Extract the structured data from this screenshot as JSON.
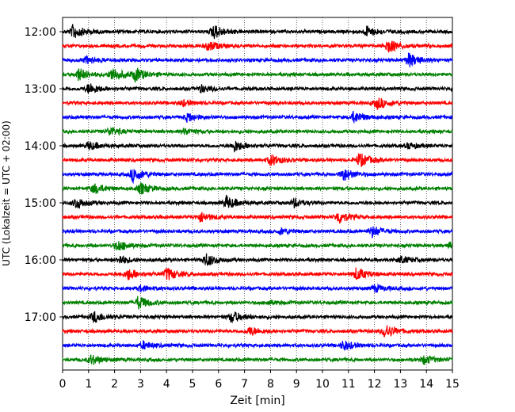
{
  "chart_data": {
    "type": "line",
    "title": "",
    "xlabel": "Zeit  [min]",
    "ylabel": "UTC (Lokalzeit = UTC + 02:00)",
    "xlim": [
      0,
      15
    ],
    "x_ticks": [
      "0",
      "1",
      "2",
      "3",
      "4",
      "5",
      "6",
      "7",
      "8",
      "9",
      "10",
      "11",
      "12",
      "13",
      "14",
      "15"
    ],
    "y_ticks": [
      "12:00",
      "13:00",
      "14:00",
      "15:00",
      "16:00",
      "17:00"
    ],
    "grid": "vertical dotted",
    "trace_start_time": "12:00",
    "trace_interval_min": 15,
    "trace_colors": [
      "#000000",
      "#ff0000",
      "#0000ff",
      "#008000"
    ],
    "traces": [
      {
        "start": "12:00",
        "events": [
          [
            0.4,
            1.0
          ],
          [
            5.8,
            1.0
          ],
          [
            11.7,
            0.7
          ]
        ]
      },
      {
        "start": "12:15",
        "events": [
          [
            5.6,
            0.7
          ],
          [
            12.5,
            1.0
          ]
        ]
      },
      {
        "start": "12:30",
        "events": [
          [
            0.9,
            0.5
          ],
          [
            13.3,
            1.0
          ]
        ]
      },
      {
        "start": "12:45",
        "events": [
          [
            0.6,
            0.9
          ],
          [
            1.9,
            1.0
          ],
          [
            2.8,
            0.9
          ]
        ]
      },
      {
        "start": "13:00",
        "events": [
          [
            1.0,
            0.8
          ],
          [
            5.3,
            0.5
          ]
        ]
      },
      {
        "start": "13:15",
        "events": [
          [
            4.6,
            0.4
          ],
          [
            12.1,
            0.8
          ]
        ]
      },
      {
        "start": "13:30",
        "events": [
          [
            4.8,
            0.6
          ],
          [
            11.2,
            0.8
          ]
        ]
      },
      {
        "start": "13:45",
        "events": [
          [
            1.8,
            0.6
          ],
          [
            4.7,
            0.4
          ]
        ]
      },
      {
        "start": "14:00",
        "events": [
          [
            1.0,
            0.6
          ],
          [
            6.6,
            0.8
          ],
          [
            13.3,
            0.4
          ]
        ]
      },
      {
        "start": "14:15",
        "events": [
          [
            8.0,
            0.8
          ],
          [
            11.4,
            1.0
          ]
        ]
      },
      {
        "start": "14:30",
        "events": [
          [
            2.7,
            1.0
          ],
          [
            10.8,
            0.9
          ]
        ]
      },
      {
        "start": "14:45",
        "events": [
          [
            1.2,
            0.7
          ],
          [
            3.0,
            0.8
          ]
        ]
      },
      {
        "start": "15:00",
        "events": [
          [
            0.5,
            0.8
          ],
          [
            6.3,
            0.9
          ],
          [
            8.9,
            0.6
          ]
        ]
      },
      {
        "start": "15:15",
        "events": [
          [
            5.3,
            0.7
          ],
          [
            10.6,
            0.9
          ]
        ]
      },
      {
        "start": "15:30",
        "events": [
          [
            8.4,
            0.4
          ],
          [
            11.9,
            0.8
          ]
        ]
      },
      {
        "start": "15:45",
        "events": [
          [
            2.1,
            0.8
          ],
          [
            14.9,
            0.4
          ]
        ]
      },
      {
        "start": "16:00",
        "events": [
          [
            2.2,
            0.6
          ],
          [
            5.5,
            0.9
          ],
          [
            13.0,
            0.5
          ]
        ]
      },
      {
        "start": "16:15",
        "events": [
          [
            2.5,
            0.8
          ],
          [
            4.0,
            0.9
          ],
          [
            11.3,
            0.9
          ]
        ]
      },
      {
        "start": "16:30",
        "events": [
          [
            3.0,
            0.4
          ],
          [
            12.0,
            0.5
          ]
        ]
      },
      {
        "start": "16:45",
        "events": [
          [
            2.9,
            0.9
          ],
          [
            7.9,
            0.3
          ]
        ]
      },
      {
        "start": "17:00",
        "events": [
          [
            1.2,
            0.8
          ],
          [
            6.5,
            0.8
          ]
        ]
      },
      {
        "start": "17:15",
        "events": [
          [
            7.2,
            0.6
          ],
          [
            12.4,
            1.0
          ]
        ]
      },
      {
        "start": "17:30",
        "events": [
          [
            3.1,
            0.5
          ],
          [
            10.8,
            0.7
          ]
        ]
      },
      {
        "start": "17:45",
        "events": [
          [
            1.1,
            0.7
          ],
          [
            13.9,
            0.6
          ]
        ]
      }
    ]
  }
}
